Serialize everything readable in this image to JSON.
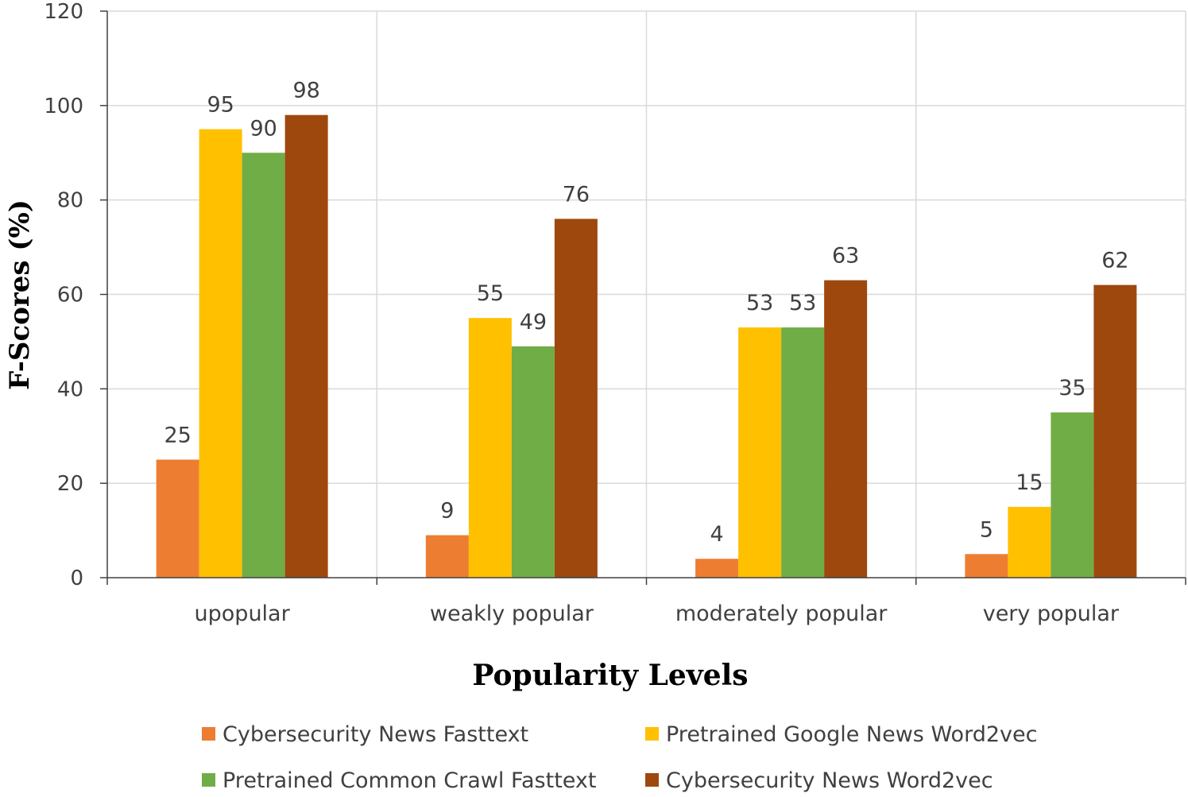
{
  "chart_data": {
    "type": "bar",
    "title": "",
    "xlabel": "Popularity Levels",
    "ylabel": "F-Scores (%)",
    "ylim": [
      0,
      120
    ],
    "yticks": [
      0,
      20,
      40,
      60,
      80,
      100,
      120
    ],
    "grid": true,
    "legend_position": "bottom",
    "categories": [
      "upopular",
      "weakly popular",
      "moderately popular",
      "very popular"
    ],
    "series": [
      {
        "name": "Cybersecurity News Fasttext",
        "color": "#ED7D31",
        "values": [
          25,
          9,
          4,
          5
        ]
      },
      {
        "name": "Pretrained Google News Word2vec",
        "color": "#FFC000",
        "values": [
          95,
          55,
          53,
          15
        ]
      },
      {
        "name": "Pretrained Common Crawl Fasttext",
        "color": "#70AD47",
        "values": [
          90,
          49,
          53,
          35
        ]
      },
      {
        "name": "Cybersecurity News Word2vec",
        "color": "#9E480E",
        "values": [
          98,
          76,
          63,
          62
        ]
      }
    ]
  }
}
